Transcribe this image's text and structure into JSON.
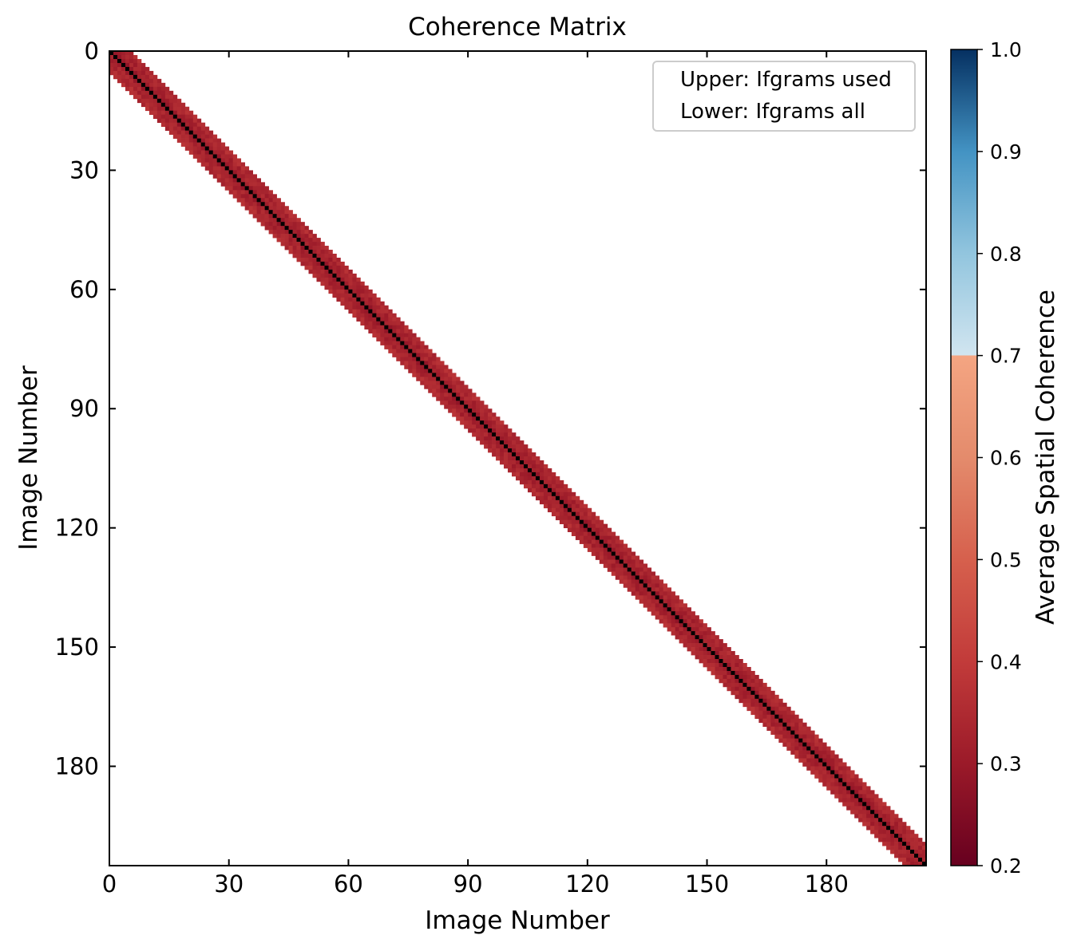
{
  "chart_data": {
    "type": "heatmap",
    "title": "Coherence Matrix",
    "xlabel": "Image Number",
    "ylabel": "Image Number",
    "n_images": 205,
    "band_halfwidth": 5,
    "x_ticks": [
      0,
      30,
      60,
      90,
      120,
      150,
      180
    ],
    "y_ticks": [
      0,
      30,
      60,
      90,
      120,
      150,
      180
    ],
    "xlim": [
      0,
      205
    ],
    "ylim": [
      205,
      0
    ],
    "value_range_in_band": [
      0.28,
      0.4
    ],
    "typical_value": 0.33,
    "diagonal_color": "#000000",
    "legend": {
      "placement": "top-right",
      "entries": [
        "Upper: Ifgrams used",
        "Lower: Ifgrams all"
      ]
    },
    "colorbar": {
      "label": "Average Spatial Coherence",
      "min": 0.2,
      "max": 1.0,
      "ticks": [
        "1.0",
        "0.9",
        "0.8",
        "0.7",
        "0.6",
        "0.5",
        "0.4",
        "0.3",
        "0.2"
      ],
      "colormap_stops": [
        {
          "value": 0.2,
          "color": "#67001f"
        },
        {
          "value": 0.3,
          "color": "#9b1a29"
        },
        {
          "value": 0.4,
          "color": "#c23b3a"
        },
        {
          "value": 0.5,
          "color": "#d6604d"
        },
        {
          "value": 0.6,
          "color": "#e48b6c"
        },
        {
          "value": 0.7,
          "color": "#f4a582"
        },
        {
          "value": 0.7001,
          "color": "#d1e5f0"
        },
        {
          "value": 0.8,
          "color": "#92c5de"
        },
        {
          "value": 0.9,
          "color": "#4393c3"
        },
        {
          "value": 1.0,
          "color": "#053061"
        }
      ]
    }
  }
}
